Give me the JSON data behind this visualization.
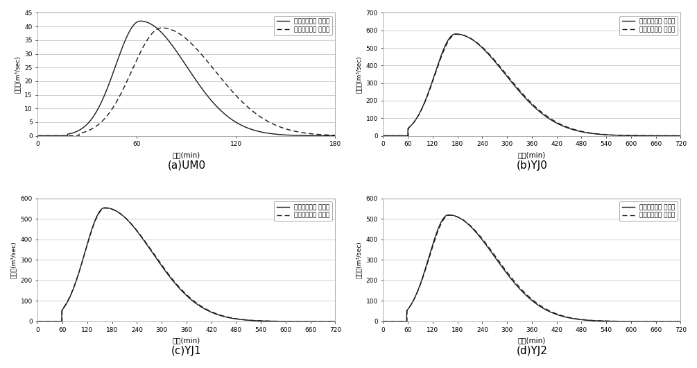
{
  "subplots": [
    {
      "label": "(a)UM0",
      "xlim": [
        0,
        180
      ],
      "ylim": [
        0,
        45
      ],
      "xticks": [
        0,
        60,
        120,
        180
      ],
      "yticks": [
        0,
        5,
        10,
        15,
        20,
        25,
        30,
        35,
        40,
        45
      ],
      "xlabel": "시간(min)",
      "ylabel": "홍수량(m³/sec)",
      "peak_before": [
        62,
        42
      ],
      "peak_after": [
        75,
        39.5
      ],
      "sigma_rise_before": 15,
      "sigma_fall_before": 28,
      "sigma_rise_after": 18,
      "sigma_fall_after": 32,
      "start_before": 18,
      "start_after": 25
    },
    {
      "label": "(b)YJ0",
      "xlim": [
        0,
        720
      ],
      "ylim": [
        0,
        700
      ],
      "xticks": [
        0,
        60,
        120,
        180,
        240,
        300,
        360,
        420,
        480,
        540,
        600,
        660,
        720
      ],
      "yticks": [
        0,
        100,
        200,
        300,
        400,
        500,
        600,
        700
      ],
      "xlabel": "시간(min)",
      "ylabel": "홍수량(m³/sec)",
      "peak_before": [
        175,
        580
      ],
      "peak_after": [
        177,
        578
      ],
      "sigma_rise_before": 50,
      "sigma_fall_before": 120,
      "sigma_rise_after": 51,
      "sigma_fall_after": 121,
      "start_before": 60,
      "start_after": 61
    },
    {
      "label": "(c)YJ1",
      "xlim": [
        0,
        720
      ],
      "ylim": [
        0,
        600
      ],
      "xticks": [
        0,
        60,
        120,
        180,
        240,
        300,
        360,
        420,
        480,
        540,
        600,
        660,
        720
      ],
      "yticks": [
        0,
        100,
        200,
        300,
        400,
        500,
        600
      ],
      "xlabel": "시간(min)",
      "ylabel": "홍수량(m³/sec)",
      "peak_before": [
        162,
        555
      ],
      "peak_after": [
        163,
        553
      ],
      "sigma_rise_before": 48,
      "sigma_fall_before": 115,
      "sigma_rise_after": 49,
      "sigma_fall_after": 116,
      "start_before": 58,
      "start_after": 59
    },
    {
      "label": "(d)YJ2",
      "xlim": [
        0,
        720
      ],
      "ylim": [
        0,
        600
      ],
      "xticks": [
        0,
        60,
        120,
        180,
        240,
        300,
        360,
        420,
        480,
        540,
        600,
        660,
        720
      ],
      "yticks": [
        0,
        100,
        200,
        300,
        400,
        500,
        600
      ],
      "xlabel": "시간(min)",
      "ylabel": "홍수량(m³/sec)",
      "peak_before": [
        158,
        520
      ],
      "peak_after": [
        160,
        518
      ],
      "sigma_rise_before": 47,
      "sigma_fall_before": 112,
      "sigma_rise_after": 48,
      "sigma_fall_after": 113,
      "start_before": 57,
      "start_after": 58
    }
  ],
  "legend_before": "우수저류시설 적용전",
  "legend_after": "우수저류시설 적용후",
  "line_color": "#1a1a1a",
  "bg_color": "#ffffff",
  "grid_color": "#bbbbbb"
}
